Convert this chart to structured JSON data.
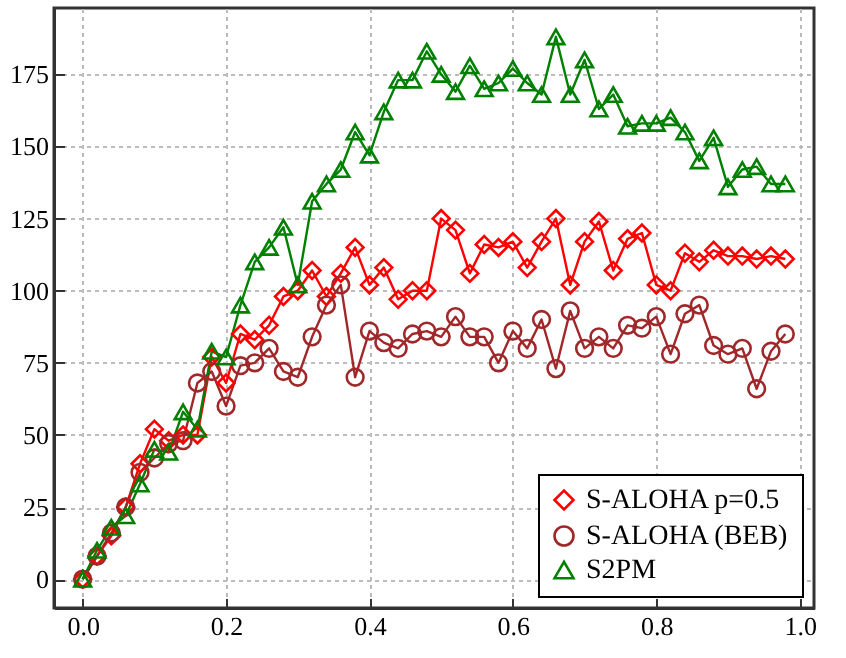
{
  "chart_data": {
    "type": "line",
    "x": [
      0,
      0.02,
      0.04,
      0.06,
      0.08,
      0.1,
      0.12,
      0.14,
      0.16,
      0.18,
      0.2,
      0.22,
      0.24,
      0.26,
      0.28,
      0.3,
      0.32,
      0.34,
      0.36,
      0.38,
      0.4,
      0.42,
      0.44,
      0.46,
      0.48,
      0.5,
      0.52,
      0.54,
      0.56,
      0.58,
      0.6,
      0.62,
      0.64,
      0.66,
      0.68,
      0.7,
      0.72,
      0.74,
      0.76,
      0.78,
      0.8,
      0.82,
      0.84,
      0.86,
      0.88,
      0.9,
      0.92,
      0.94,
      0.96,
      0.98
    ],
    "series": [
      {
        "name": "S-ALOHA p=0.5",
        "color": "#ff0000",
        "marker": "diamond",
        "values": [
          0,
          8,
          15,
          25,
          40,
          52,
          48,
          50,
          50,
          77,
          68,
          85,
          83,
          88,
          98,
          100,
          107,
          98,
          106,
          115,
          102,
          108,
          97,
          100,
          100,
          125,
          121,
          106,
          116,
          115,
          117,
          108,
          117,
          125,
          102,
          117,
          124,
          107,
          118,
          120,
          102,
          100,
          113,
          110,
          114,
          112,
          112,
          111,
          112,
          111
        ]
      },
      {
        "name": "S-ALOHA (BEB)",
        "color": "#a0282a",
        "marker": "circle",
        "values": [
          0,
          8,
          16,
          25,
          37,
          42,
          47,
          48,
          68,
          72,
          60,
          74,
          75,
          80,
          72,
          70,
          84,
          95,
          102,
          70,
          86,
          82,
          80,
          85,
          86,
          84,
          91,
          84,
          84,
          75,
          86,
          80,
          90,
          73,
          93,
          80,
          84,
          80,
          88,
          87,
          91,
          78,
          92,
          95,
          81,
          78,
          80,
          66,
          79,
          85
        ]
      },
      {
        "name": "S2PM",
        "color": "#008000",
        "marker": "triangle",
        "values": [
          0,
          10,
          18,
          22,
          33,
          45,
          44,
          58,
          52,
          79,
          77,
          95,
          110,
          115,
          122,
          102,
          131,
          137,
          142,
          155,
          147,
          162,
          173,
          173,
          183,
          175,
          169,
          178,
          170,
          172,
          177,
          172,
          168,
          188,
          168,
          180,
          163,
          168,
          157,
          158,
          158,
          160,
          155,
          145,
          153,
          136,
          142,
          143,
          137,
          137
        ]
      }
    ],
    "xlim": [
      -0.04,
      1.02
    ],
    "xticks": [
      {
        "value": 0,
        "label": "0.0"
      },
      0.2,
      0.4,
      0.6,
      0.8,
      {
        "value": 1,
        "label": "1.0"
      }
    ],
    "ylim": [
      -10,
      198
    ],
    "yticks": [
      0,
      25,
      50,
      75,
      100,
      125,
      150,
      175
    ],
    "grid": true,
    "legend": "bottom right"
  }
}
